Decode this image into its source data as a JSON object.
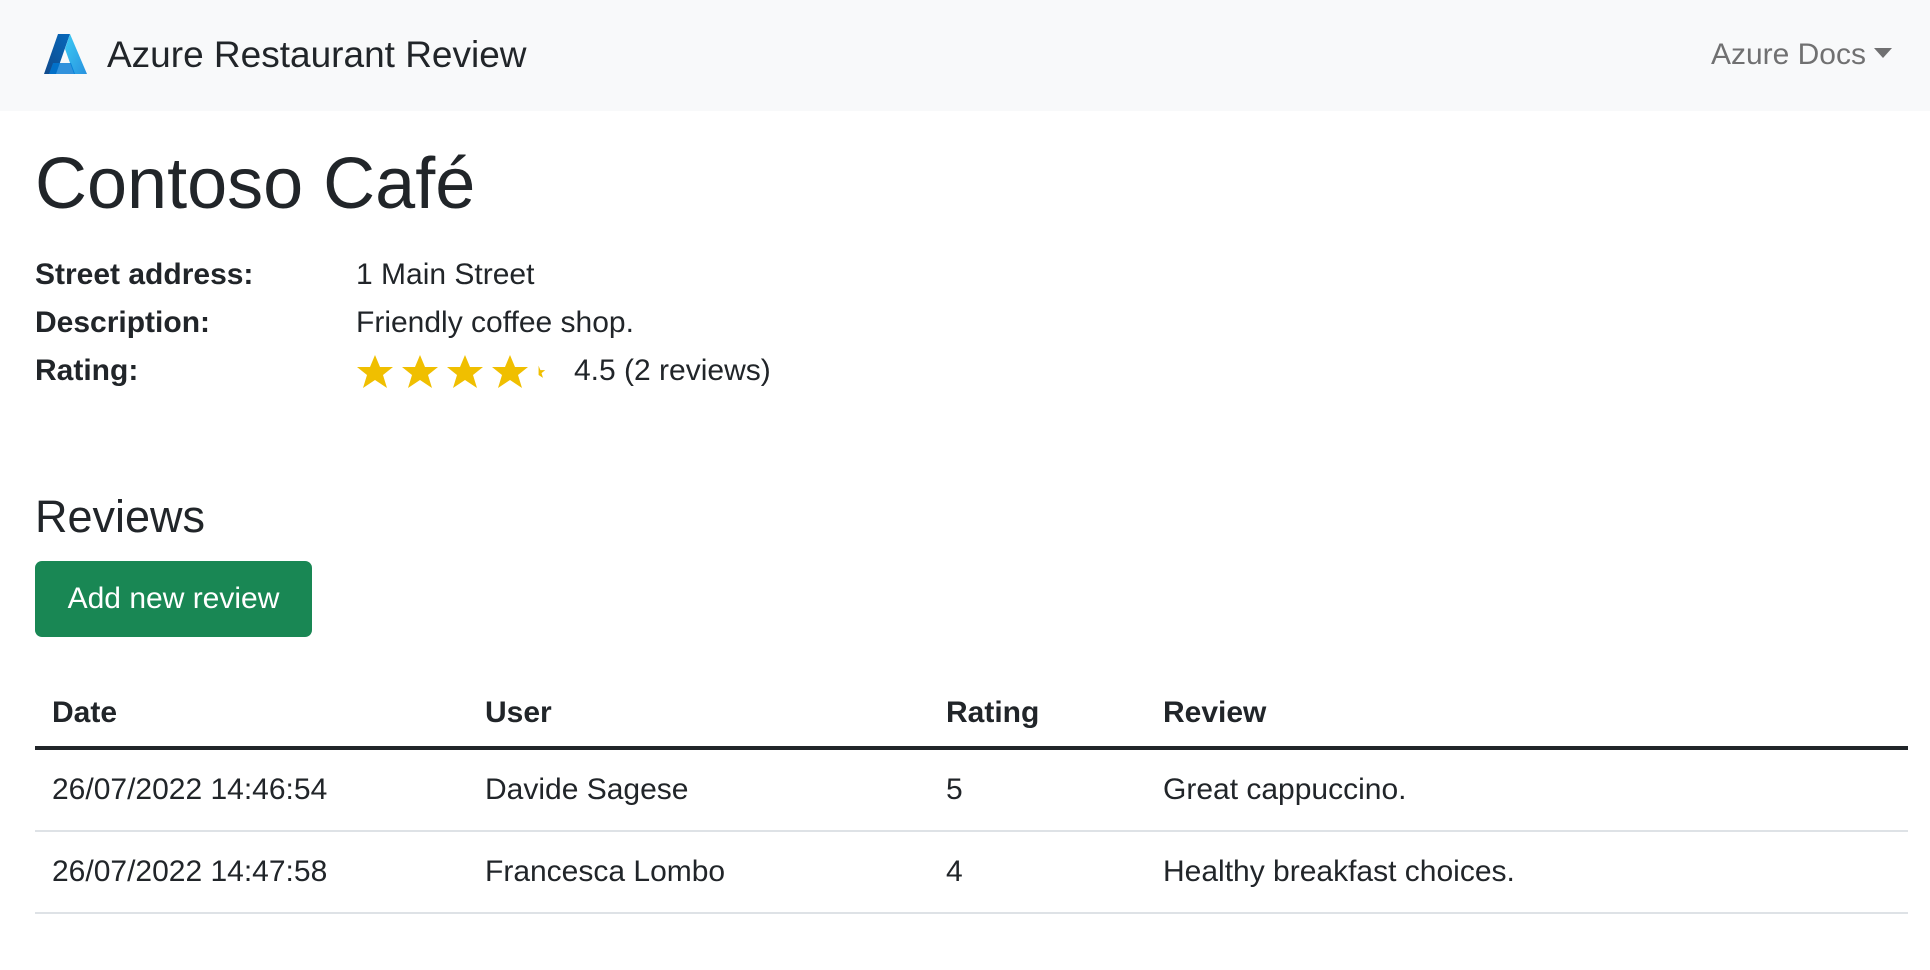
{
  "navbar": {
    "brand": "Azure Restaurant Review",
    "logo": "azure-logo-icon",
    "docs_menu": "Azure Docs"
  },
  "restaurant": {
    "name": "Contoso Café",
    "address_label": "Street address:",
    "address": "1 Main Street",
    "description_label": "Description:",
    "description": "Friendly coffee shop.",
    "rating_label": "Rating:",
    "rating_value": 4.5,
    "rating_text": "4.5 (2 reviews)"
  },
  "reviews": {
    "title": "Reviews",
    "add_button": "Add new review",
    "columns": [
      "Date",
      "User",
      "Rating",
      "Review"
    ],
    "rows": [
      [
        "26/07/2022 14:46:54",
        "Davide Sagese",
        "5",
        "Great cappuccino."
      ],
      [
        "26/07/2022 14:47:58",
        "Francesca Lombo",
        "4",
        "Healthy breakfast choices."
      ]
    ]
  },
  "colors": {
    "navbar_bg": "#f8f9fa",
    "text": "#212529",
    "button": "#198754",
    "star": "#f0bf00"
  }
}
